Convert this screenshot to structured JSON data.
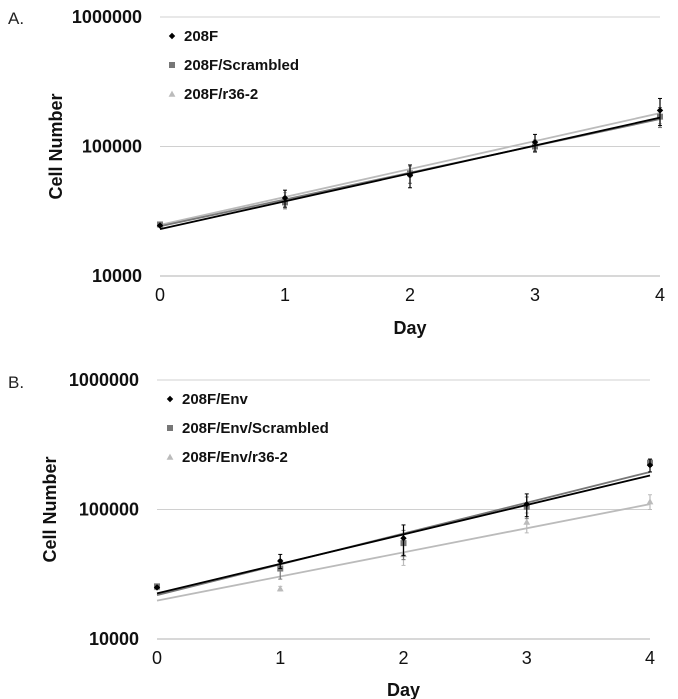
{
  "chart_data": [
    {
      "panel_label": "A.",
      "type": "scatter",
      "scale_y": "log",
      "xlabel": "Day",
      "ylabel": "Cell Number",
      "xlim": [
        0,
        4
      ],
      "ylim": [
        10000,
        1000000
      ],
      "x_ticks": [
        "0",
        "1",
        "2",
        "3",
        "4"
      ],
      "y_ticks": [
        "10000",
        "100000",
        "1000000"
      ],
      "legend_position": "top-left",
      "grid": "horizontal major lines",
      "x": [
        0,
        1,
        2,
        3,
        4
      ],
      "series": [
        {
          "name": "208F",
          "marker": "diamond",
          "color": "#000000",
          "values": [
            24500,
            40000,
            60000,
            108000,
            190000
          ],
          "errors": [
            500,
            6000,
            12000,
            16000,
            45000
          ],
          "trendline": [
            23000,
            37800,
            62000,
            101700,
            167000
          ]
        },
        {
          "name": "208F/Scrambled",
          "marker": "square",
          "color": "#777777",
          "values": [
            25000,
            37000,
            62000,
            100000,
            170000
          ],
          "errors": [
            500,
            4000,
            10000,
            10000,
            30000
          ],
          "trendline": [
            24200,
            39000,
            62800,
            101200,
            163000
          ]
        },
        {
          "name": "208F/r36-2",
          "marker": "triangle",
          "color": "#bbbbbb",
          "values": [
            25000,
            41000,
            64000,
            105000,
            170000
          ],
          "errors": [
            500,
            3000,
            6000,
            8000,
            20000
          ],
          "trendline": [
            24800,
            40800,
            67000,
            110000,
            181000
          ]
        }
      ]
    },
    {
      "panel_label": "B.",
      "type": "scatter",
      "scale_y": "log",
      "xlabel": "Day",
      "ylabel": "Cell Number",
      "xlim": [
        0,
        4
      ],
      "ylim": [
        10000,
        1000000
      ],
      "x_ticks": [
        "0",
        "1",
        "2",
        "3",
        "4"
      ],
      "y_ticks": [
        "10000",
        "100000",
        "1000000"
      ],
      "legend_position": "top-left",
      "grid": "horizontal major lines",
      "x": [
        0,
        1,
        2,
        3,
        4
      ],
      "series": [
        {
          "name": "208F/Env",
          "marker": "diamond",
          "color": "#000000",
          "values": [
            25000,
            40000,
            60000,
            110000,
            220000
          ],
          "errors": [
            500,
            5000,
            16000,
            22000,
            25000
          ],
          "trendline": [
            22500,
            38000,
            64000,
            109000,
            183000
          ]
        },
        {
          "name": "208F/Env/Scrambled",
          "marker": "square",
          "color": "#777777",
          "values": [
            25500,
            35000,
            55000,
            105000,
            230000
          ],
          "errors": [
            500,
            6000,
            14000,
            20000,
            15000
          ],
          "trendline": [
            21800,
            37600,
            65000,
            112000,
            195000
          ]
        },
        {
          "name": "208F/Env/r36-2",
          "marker": "triangle",
          "color": "#bbbbbb",
          "values": [
            25000,
            24500,
            45000,
            80000,
            115000
          ],
          "errors": [
            500,
            1000,
            8000,
            14000,
            15000
          ],
          "trendline": [
            19800,
            31200,
            47500,
            72500,
            110000
          ]
        }
      ]
    }
  ]
}
